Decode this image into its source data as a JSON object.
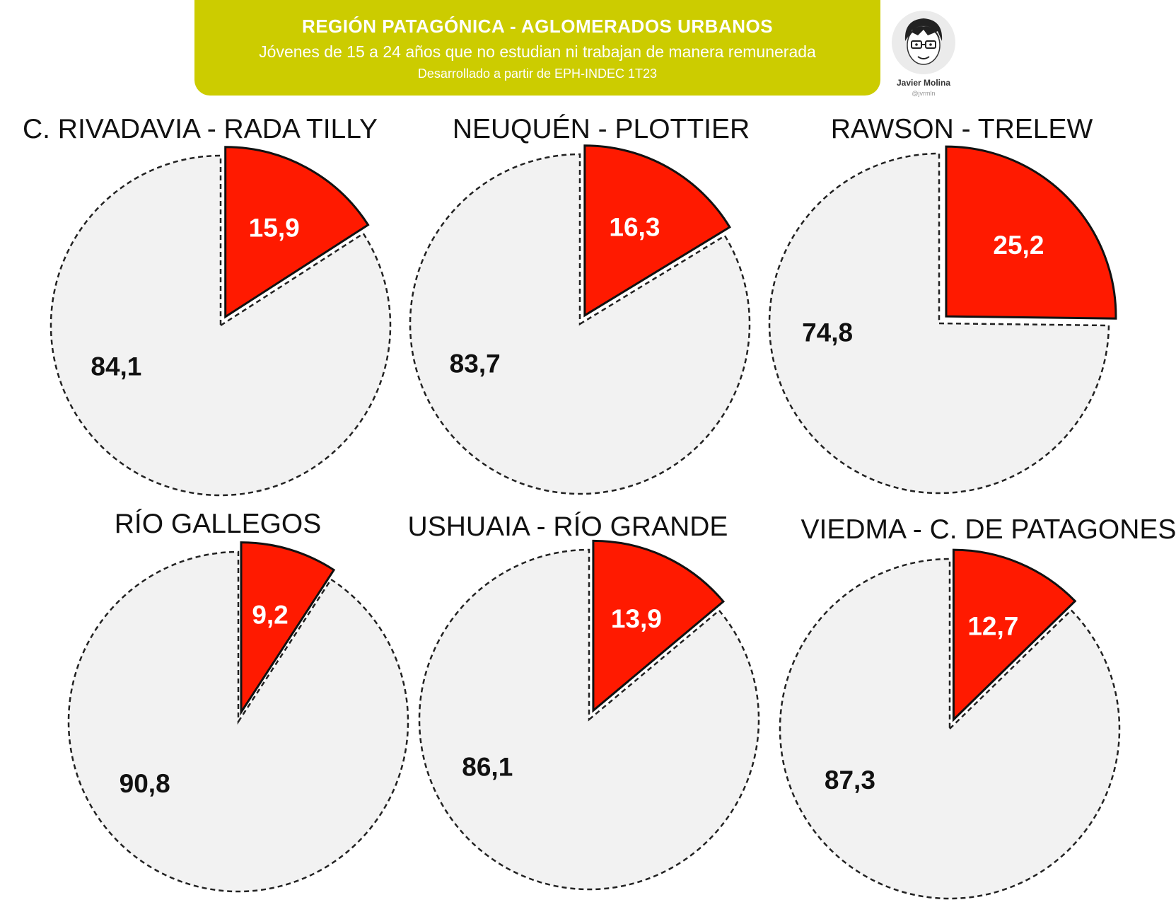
{
  "header": {
    "title": "REGIÓN PATAGÓNICA - AGLOMERADOS URBANOS",
    "subtitle": "Jóvenes de 15 a 24 años que no estudian ni trabajan de manera remunerada",
    "source": "Desarrollado a partir de EPH-INDEC 1T23",
    "banner_color": "#cccc00"
  },
  "author": {
    "name": "Javier Molina",
    "handle": "@jvrmln",
    "icon": "avatar-cartoon-icon"
  },
  "chart_data": [
    {
      "type": "pie",
      "title": "C. RIVADAVIA - RADA TILLY",
      "slices": [
        {
          "value": 15.9,
          "label": "15,9",
          "color": "#ff1a00"
        },
        {
          "value": 84.1,
          "label": "84,1",
          "color": "#f2f2f2"
        }
      ]
    },
    {
      "type": "pie",
      "title": "NEUQUÉN - PLOTTIER",
      "slices": [
        {
          "value": 16.3,
          "label": "16,3",
          "color": "#ff1a00"
        },
        {
          "value": 83.7,
          "label": "83,7",
          "color": "#f2f2f2"
        }
      ]
    },
    {
      "type": "pie",
      "title": "RAWSON - TRELEW",
      "slices": [
        {
          "value": 25.2,
          "label": "25,2",
          "color": "#ff1a00"
        },
        {
          "value": 74.8,
          "label": "74,8",
          "color": "#f2f2f2"
        }
      ]
    },
    {
      "type": "pie",
      "title": "RÍO GALLEGOS",
      "slices": [
        {
          "value": 9.2,
          "label": "9,2",
          "color": "#ff1a00"
        },
        {
          "value": 90.8,
          "label": "90,8",
          "color": "#f2f2f2"
        }
      ]
    },
    {
      "type": "pie",
      "title": "USHUAIA - RÍO GRANDE",
      "slices": [
        {
          "value": 13.9,
          "label": "13,9",
          "color": "#ff1a00"
        },
        {
          "value": 86.1,
          "label": "86,1",
          "color": "#f2f2f2"
        }
      ]
    },
    {
      "type": "pie",
      "title": "VIEDMA - C. DE PATAGONES",
      "slices": [
        {
          "value": 12.7,
          "label": "12,7",
          "color": "#ff1a00"
        },
        {
          "value": 87.3,
          "label": "87,3",
          "color": "#f2f2f2"
        }
      ]
    }
  ]
}
